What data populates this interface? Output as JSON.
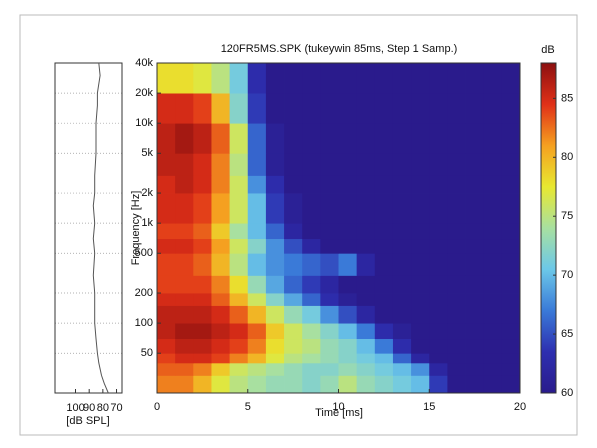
{
  "chart_data": [
    {
      "type": "line",
      "orientation": "horizontal",
      "xlabel": "[dB SPL]",
      "xlim": [
        115,
        66
      ],
      "xticks": [
        100,
        90,
        80,
        70
      ],
      "ylim": [
        20,
        40000
      ],
      "ylog": true,
      "grid": true,
      "color": "#555555",
      "y": [
        20,
        25,
        30,
        40,
        50,
        70,
        100,
        150,
        200,
        300,
        500,
        700,
        1000,
        1500,
        2000,
        3000,
        5000,
        7000,
        10000,
        15000,
        20000,
        30000,
        40000
      ],
      "values": [
        76,
        79,
        81,
        83,
        84,
        85,
        86,
        86,
        86,
        87,
        86,
        87,
        86,
        87,
        86,
        86,
        85,
        85,
        85,
        84,
        84,
        82,
        83
      ]
    },
    {
      "type": "heatmap",
      "title": "120FR5MS.SPK (tukeywin 85ms, Step 1 Samp.)",
      "xlabel": "Time [ms]",
      "ylabel": "Frequency [Hz]",
      "xlim": [
        0,
        20
      ],
      "xticks": [
        0,
        5,
        10,
        15,
        20
      ],
      "ylim": [
        20,
        40000
      ],
      "ylog": true,
      "yticks": [
        50,
        100,
        200,
        500,
        {
          "value": 1000,
          "label": "1k"
        },
        {
          "value": 2000,
          "label": "2k"
        },
        {
          "value": 5000,
          "label": "5k"
        },
        {
          "value": 10000,
          "label": "10k"
        },
        {
          "value": 20000,
          "label": "20k"
        },
        {
          "value": 40000,
          "label": "40k"
        }
      ],
      "xbins": [
        0,
        1,
        2,
        3,
        4,
        5,
        6,
        7,
        8,
        9,
        10,
        11,
        12,
        13,
        14,
        15,
        16,
        17,
        18,
        19,
        20
      ],
      "ybins": [
        20,
        30,
        40,
        50,
        70,
        100,
        150,
        200,
        300,
        500,
        700,
        1000,
        2000,
        3000,
        5000,
        10000,
        20000,
        40000
      ],
      "z": [
        [
          82,
          82,
          80,
          77,
          75,
          74,
          73,
          73,
          72,
          73,
          75,
          73,
          72,
          71,
          70,
          64,
          60,
          60,
          60,
          60
        ],
        [
          83,
          83,
          82,
          79,
          76,
          75,
          74,
          73,
          72,
          72,
          73,
          72,
          71,
          70,
          68,
          62,
          60,
          60,
          60,
          60
        ],
        [
          84,
          85,
          85,
          84,
          82,
          80,
          77,
          75,
          74,
          73,
          72,
          71,
          70,
          66,
          62,
          60,
          60,
          60,
          60,
          60
        ],
        [
          85,
          86,
          86,
          85,
          84,
          82,
          78,
          76,
          75,
          73,
          72,
          70,
          67,
          63,
          60,
          60,
          60,
          60,
          60,
          60
        ],
        [
          86,
          87,
          87,
          86,
          85,
          83,
          79,
          76,
          74,
          72,
          70,
          67,
          63,
          61,
          60,
          60,
          60,
          60,
          60,
          60
        ],
        [
          86,
          86,
          86,
          85,
          83,
          80,
          76,
          73,
          71,
          68,
          65,
          62,
          60,
          60,
          60,
          60,
          60,
          60,
          60,
          60
        ],
        [
          85,
          85,
          85,
          83,
          80,
          76,
          72,
          69,
          66,
          63,
          61,
          60,
          60,
          60,
          60,
          60,
          60,
          60,
          60,
          60
        ],
        [
          84,
          84,
          84,
          82,
          78,
          73,
          69,
          66,
          64,
          62,
          60,
          60,
          60,
          60,
          60,
          60,
          60,
          60,
          60,
          60
        ],
        [
          84,
          84,
          83,
          80,
          75,
          70,
          68,
          67,
          66,
          65,
          67,
          62,
          60,
          60,
          60,
          60,
          60,
          60,
          60,
          60
        ],
        [
          85,
          85,
          84,
          81,
          76,
          72,
          68,
          65,
          62,
          60,
          60,
          60,
          60,
          60,
          60,
          60,
          60,
          60,
          60,
          60
        ],
        [
          84,
          84,
          83,
          79,
          74,
          70,
          66,
          62,
          60,
          60,
          60,
          60,
          60,
          60,
          60,
          60,
          60,
          60,
          60,
          60
        ],
        [
          85,
          85,
          84,
          81,
          76,
          70,
          64,
          61,
          60,
          60,
          60,
          60,
          60,
          60,
          60,
          60,
          60,
          60,
          60,
          60
        ],
        [
          85,
          86,
          85,
          82,
          76,
          68,
          63,
          60,
          60,
          60,
          60,
          60,
          60,
          60,
          60,
          60,
          60,
          60,
          60,
          60
        ],
        [
          86,
          86,
          85,
          82,
          75,
          66,
          61,
          60,
          60,
          60,
          60,
          60,
          60,
          60,
          60,
          60,
          60,
          60,
          60,
          60
        ],
        [
          86,
          87,
          86,
          83,
          76,
          66,
          61,
          60,
          60,
          60,
          60,
          60,
          60,
          60,
          60,
          60,
          60,
          60,
          60,
          60
        ],
        [
          85,
          85,
          84,
          80,
          72,
          64,
          60,
          60,
          60,
          60,
          60,
          60,
          60,
          60,
          60,
          60,
          60,
          60,
          60,
          60
        ],
        [
          78,
          78,
          77,
          75,
          71,
          63,
          60,
          60,
          60,
          60,
          60,
          60,
          60,
          60,
          60,
          60,
          60,
          60,
          60,
          60
        ]
      ],
      "colorbar": {
        "label": "dB",
        "lim": [
          60,
          88
        ],
        "ticks": [
          60,
          65,
          70,
          75,
          80,
          85
        ],
        "colors": [
          "#2a1b8c",
          "#2d2fb0",
          "#3a7ad8",
          "#6cc8e8",
          "#a8e0a0",
          "#e8e830",
          "#f5a020",
          "#e03018",
          "#8c1010"
        ]
      }
    }
  ]
}
